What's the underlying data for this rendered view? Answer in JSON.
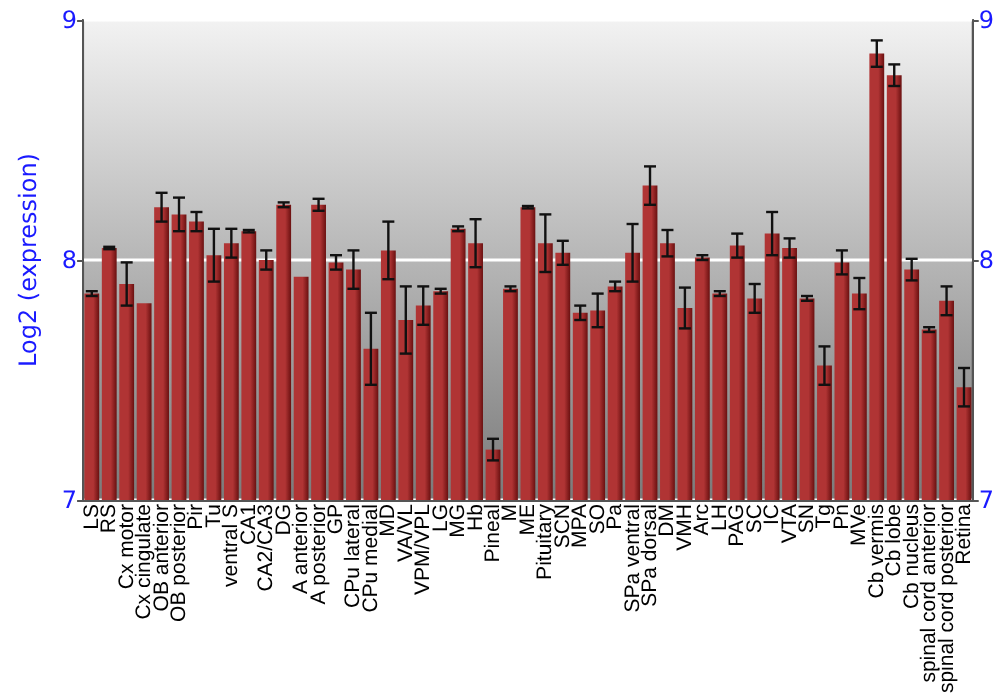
{
  "chart_data": {
    "type": "bar",
    "ylabel": "Log2 (expression)",
    "categories": [
      "LS",
      "RS",
      "Cx motor",
      "Cx cingulate",
      "OB anterior",
      "OB posterior",
      "Pir",
      "Tu",
      "ventral S",
      "CA1",
      "CA2/CA3",
      "DG",
      "A anterior",
      "A posterior",
      "GP",
      "CPu lateral",
      "CPu medial",
      "MD",
      "VA/VL",
      "VPM/VPL",
      "LG",
      "MG",
      "Hb",
      "Pineal",
      "M",
      "ME",
      "Pituitary",
      "SCN",
      "MPA",
      "SO",
      "Pa",
      "SPa ventral",
      "SPa dorsal",
      "DM",
      "VMH",
      "Arc",
      "LH",
      "PAG",
      "SC",
      "IC",
      "VTA",
      "SN",
      "Tg",
      "Pn",
      "MVe",
      "Cb vermis",
      "Cb lobe",
      "Cb nucleus",
      "spinal cord anterior",
      "spinal cord posterior",
      "Retina"
    ],
    "values": [
      7.86,
      8.05,
      7.9,
      7.82,
      8.22,
      8.19,
      8.16,
      8.02,
      8.07,
      8.12,
      8.0,
      8.23,
      7.93,
      8.23,
      7.99,
      7.96,
      7.63,
      8.04,
      7.75,
      7.81,
      7.87,
      8.13,
      8.07,
      7.21,
      7.88,
      8.22,
      8.07,
      8.03,
      7.78,
      7.79,
      7.89,
      8.03,
      8.31,
      8.07,
      7.8,
      8.01,
      7.86,
      8.06,
      7.84,
      8.11,
      8.05,
      7.84,
      7.56,
      7.99,
      7.86,
      8.86,
      8.77,
      7.96,
      7.71,
      7.83,
      7.47
    ],
    "errors": [
      0.01,
      0.005,
      0.09,
      null,
      0.06,
      0.07,
      0.04,
      0.11,
      0.06,
      0.005,
      0.04,
      0.01,
      null,
      0.025,
      0.03,
      0.08,
      0.15,
      0.12,
      0.14,
      0.08,
      0.01,
      0.01,
      0.1,
      0.045,
      0.01,
      0.005,
      0.12,
      0.05,
      0.03,
      0.07,
      0.02,
      0.12,
      0.08,
      0.055,
      0.085,
      0.01,
      0.01,
      0.05,
      0.06,
      0.09,
      0.04,
      0.01,
      0.08,
      0.05,
      0.065,
      0.055,
      0.045,
      0.045,
      0.01,
      0.06,
      0.08
    ],
    "color": "#b03434",
    "ylim": [
      7,
      9
    ],
    "yticks": [
      7,
      8,
      9
    ],
    "y2lim": [
      7,
      9
    ],
    "y2ticks": [
      7,
      8,
      9
    ],
    "grid": "y"
  }
}
